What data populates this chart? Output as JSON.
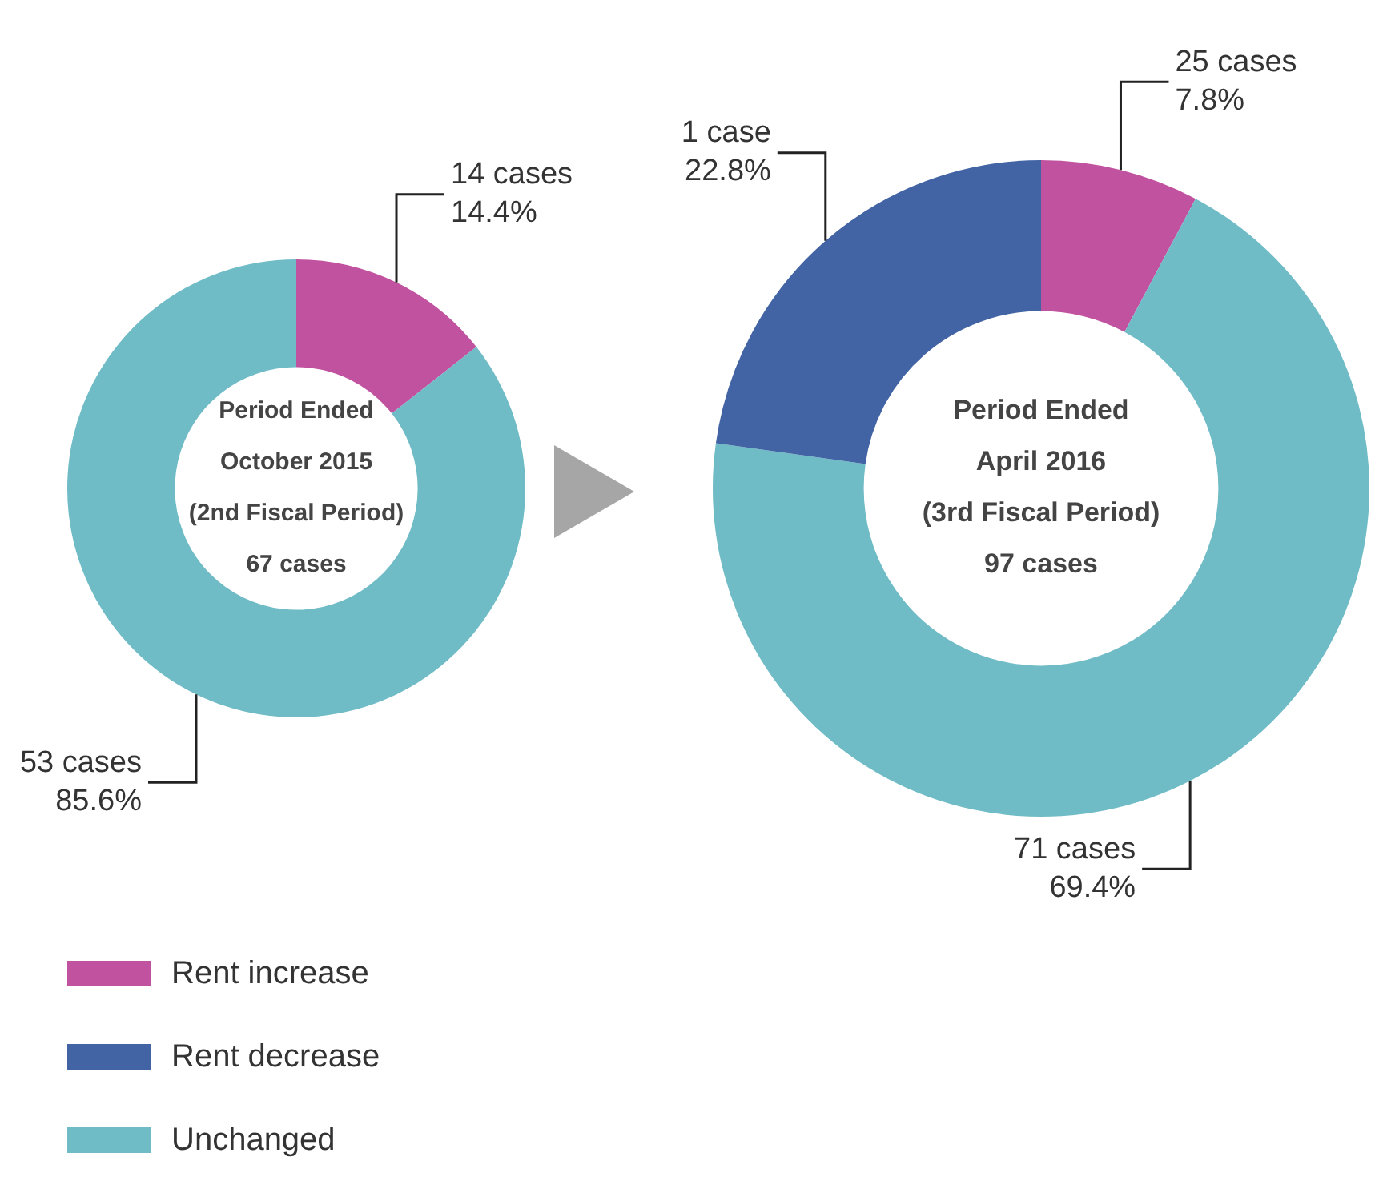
{
  "chart_data": [
    {
      "type": "donut",
      "title": "Period Ended\nOctober 2015\n(2nd Fiscal Period)",
      "subtitle": "67 cases",
      "categories": [
        null,
        null
      ],
      "values": [
        14.4,
        85.6
      ],
      "colors": [
        "#c0529f",
        "#6fbbc6"
      ],
      "value_labels": [
        "14 cases\n14.4%",
        "53 cases\n85.6%"
      ]
    },
    {
      "type": "donut",
      "title": "Period Ended\nApril 2016\n(3rd Fiscal Period)",
      "subtitle": "97 cases",
      "categories": [
        "Rent increase",
        "Unchanged",
        "Rent decrease"
      ],
      "values": [
        7.8,
        69.4,
        22.8
      ],
      "colors": [
        "#c0529f",
        "#6fbbc6",
        "#4264a4"
      ],
      "value_labels": [
        "25 cases\n7.8%",
        "71 cases\n69.4%",
        "1 case\n22.8%"
      ],
      "legend": "bottom left"
    }
  ]
}
